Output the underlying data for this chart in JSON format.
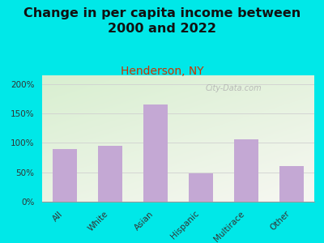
{
  "title": "Change in per capita income between\n2000 and 2022",
  "subtitle": "Henderson, NY",
  "categories": [
    "All",
    "White",
    "Asian",
    "Hispanic",
    "Multirace",
    "Other"
  ],
  "values": [
    90,
    95,
    165,
    48,
    106,
    60
  ],
  "bar_color": "#c4a8d4",
  "title_fontsize": 11.5,
  "subtitle_fontsize": 10,
  "subtitle_color": "#cc3300",
  "tick_label_fontsize": 7.5,
  "ytick_labels": [
    "0%",
    "50%",
    "100%",
    "150%",
    "200%"
  ],
  "ytick_values": [
    0,
    50,
    100,
    150,
    200
  ],
  "ylim": [
    0,
    215
  ],
  "background_outer": "#00e8e8",
  "background_inner_top_left": "#d8efd0",
  "background_inner_bottom_right": "#f7f7f2",
  "watermark": "City-Data.com",
  "grid_color": "#d0d0d0"
}
